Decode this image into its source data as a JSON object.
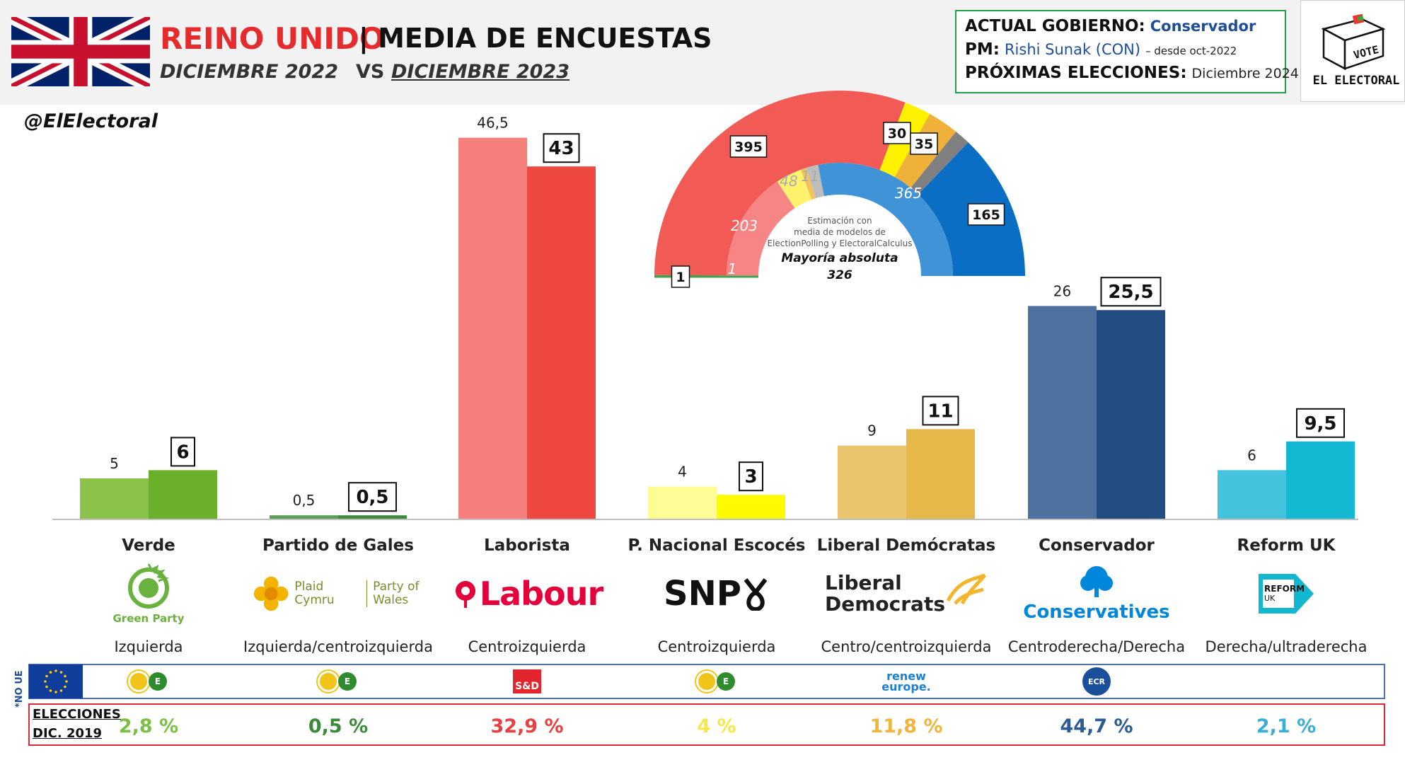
{
  "header": {
    "country": "REINO UNIDO",
    "title_rest": "| MEDIA DE ENCUESTAS",
    "sub_a": "DICIEMBRE 2022",
    "sub_b": "VS",
    "sub_c": "DICIEMBRE 2023",
    "handle": "@ElElectoral"
  },
  "info": {
    "gov_key": "ACTUAL GOBIERNO:",
    "gov_val": "Conservador",
    "pm_key": "PM:",
    "pm_val": "Rishi Sunak (CON)",
    "pm_since": "– desde oct-2022",
    "next_key": "PRÓXIMAS ELECCIONES:",
    "next_val": "Diciembre 2024"
  },
  "logo": {
    "box_text": "VOTE",
    "name": "EL ELECTORAL"
  },
  "no_ue_label": "*NO UE",
  "elections_label_1": "ELECCIONES",
  "elections_label_2": "DIC. 2019",
  "parties": [
    {
      "name": "Verde",
      "ideology": "Izquierda",
      "logo": "Green Party",
      "eu_group": "greens-efa",
      "election_2019": "2,8 %",
      "color": "#7ac143"
    },
    {
      "name": "Partido de Gales",
      "ideology": "Izquierda/centroizquierda",
      "logo_1": "Plaid Cymru",
      "logo_2": "Party of Wales",
      "eu_group": "greens-efa",
      "election_2019": "0,5 %",
      "color": "#3a8a3a"
    },
    {
      "name": "Laborista",
      "ideology": "Centroizquierda",
      "logo": "Labour",
      "eu_group": "S&D",
      "election_2019": "32,9 %",
      "color": "#e84040"
    },
    {
      "name": "P. Nacional Escocés",
      "ideology": "Centroizquierda",
      "logo": "SNP",
      "eu_group": "greens-efa",
      "election_2019": "4 %",
      "color": "#f5e84a"
    },
    {
      "name": "Liberal Demócratas",
      "ideology": "Centro/centroizquierda",
      "logo_1": "Liberal",
      "logo_2": "Democrats",
      "eu_group": "renew europe.",
      "election_2019": "11,8 %",
      "color": "#f0b63a"
    },
    {
      "name": "Conservador",
      "ideology": "Centroderecha/Derecha",
      "logo": "Conservatives",
      "eu_group": "ECR",
      "election_2019": "44,7 %",
      "color": "#2b5c94"
    },
    {
      "name": "Reform UK",
      "ideology": "Derecha/ultraderecha",
      "logo_1": "REFORM",
      "logo_2": "UK",
      "eu_group": "",
      "election_2019": "2,1 %",
      "color": "#3aaed8"
    }
  ],
  "chart_data": {
    "type": "bar",
    "categories": [
      "Verde",
      "Partido de Gales",
      "Laborista",
      "P. Nacional Escocés",
      "Liberal Demócratas",
      "Conservador",
      "Reform UK"
    ],
    "series": [
      {
        "name": "DICIEMBRE 2022",
        "values": [
          5,
          0.5,
          46.5,
          4,
          9,
          26,
          6
        ],
        "labels": [
          "5",
          "0,5",
          "46,5",
          "4",
          "9",
          "26",
          "6"
        ],
        "colors": [
          "#8bc34a",
          "#5c9c5a",
          "#f47f7b",
          "#fefc94",
          "#e9c66e",
          "#4f71a0",
          "#46c3dc"
        ]
      },
      {
        "name": "DICIEMBRE 2023",
        "values": [
          6,
          0.5,
          43,
          3,
          11,
          25.5,
          9.5
        ],
        "labels": [
          "6",
          "0,5",
          "43",
          "3",
          "11",
          "25,5",
          "9,5"
        ],
        "colors": [
          "#6ab02a",
          "#3f8a3f",
          "#ef4841",
          "#fffa00",
          "#e6b84a",
          "#234d82",
          "#15b8d2"
        ]
      }
    ],
    "ylim": [
      0,
      50
    ]
  },
  "seats": {
    "note_1": "Estimación con",
    "note_2": "media de modelos de",
    "note_3": "ElectionPolling y ElectoralCalculus",
    "majority_label": "Mayoría absoluta",
    "majority_value": "326",
    "outer": [
      {
        "party": "Verde",
        "seats": 1,
        "label": "1",
        "color": "#3fa34d"
      },
      {
        "party": "Laborista",
        "seats": 395,
        "label": "395",
        "color": "#f15a55"
      },
      {
        "party": "P. Nacional Escocés",
        "seats": 30,
        "label": "30",
        "color": "#fff200"
      },
      {
        "party": "Liberal Demócratas",
        "seats": 35,
        "label": "35",
        "color": "#f0b13a"
      },
      {
        "party": "Otros",
        "seats": 18,
        "label": "",
        "color": "#808080"
      },
      {
        "party": "Conservador",
        "seats": 165,
        "label": "165",
        "color": "#0a6fc4"
      }
    ],
    "inner": [
      {
        "party": "Verde",
        "seats": 1,
        "label": "1",
        "color": "#3fa34d"
      },
      {
        "party": "Laborista",
        "seats": 203,
        "label": "203",
        "color": "#f88585"
      },
      {
        "party": "P. Nacional Escocés",
        "seats": 48,
        "label": "48",
        "color": "#fff36e"
      },
      {
        "party": "Liberal Demócratas",
        "seats": 11,
        "label": "11",
        "color": "#f3c35e"
      },
      {
        "party": "Otros",
        "seats": 22,
        "label": "",
        "color": "#bdbdbd"
      },
      {
        "party": "Conservador",
        "seats": 365,
        "label": "365",
        "color": "#3f93d6"
      }
    ]
  }
}
